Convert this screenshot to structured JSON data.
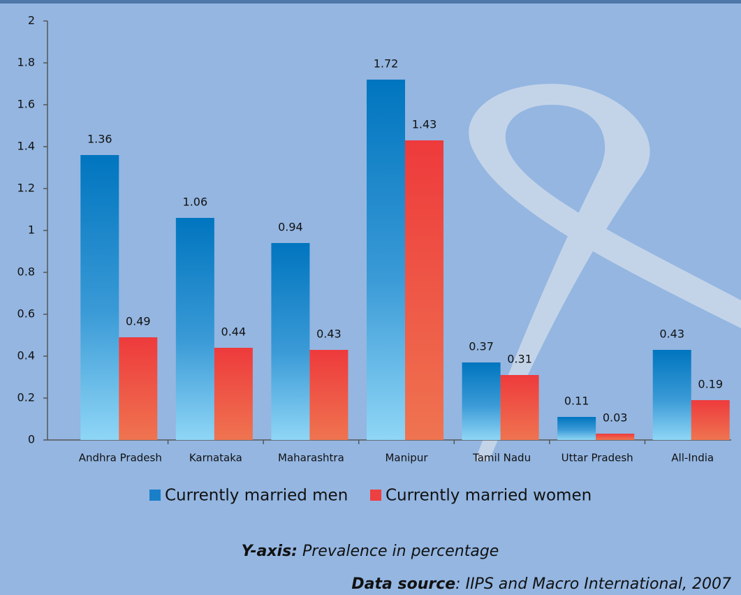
{
  "chart_data": {
    "type": "bar",
    "categories": [
      "Andhra Pradesh",
      "Karnataka",
      "Maharashtra",
      "Manipur",
      "Tamil Nadu",
      "Uttar Pradesh",
      "All-India"
    ],
    "series": [
      {
        "name": "Currently married men",
        "color": "#1a7fc8",
        "values": [
          1.36,
          1.06,
          0.94,
          1.72,
          0.37,
          0.11,
          0.43
        ]
      },
      {
        "name": "Currently married women",
        "color": "#ee4040",
        "values": [
          0.49,
          0.44,
          0.43,
          1.43,
          0.31,
          0.03,
          0.19
        ]
      }
    ],
    "ylim": [
      0,
      2
    ],
    "yticks": [
      0,
      0.2,
      0.4,
      0.6,
      0.8,
      1,
      1.2,
      1.4,
      1.6,
      1.8,
      2
    ],
    "y_axis_note_label": "Y-axis:",
    "y_axis_note": "Prevalence in percentage",
    "source_label": "Data source",
    "source": ": IIPS and Macro International, 2007"
  }
}
